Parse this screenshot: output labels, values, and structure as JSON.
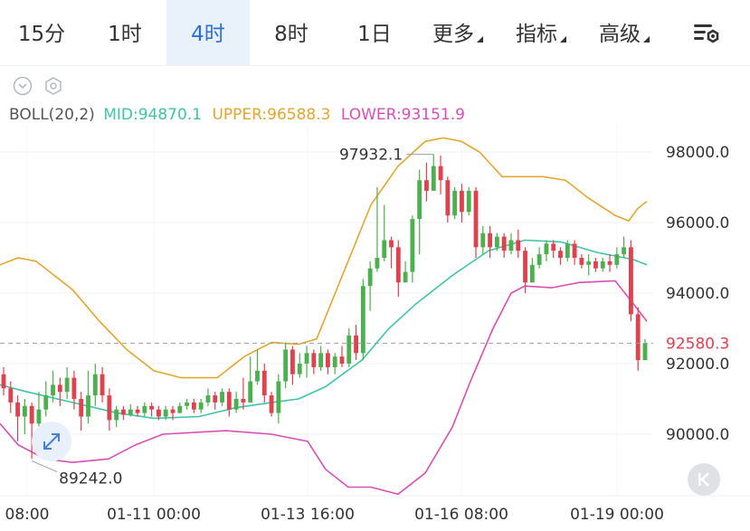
{
  "tabs": [
    {
      "label": "15分",
      "active": false,
      "dropdown": false
    },
    {
      "label": "1时",
      "active": false,
      "dropdown": false
    },
    {
      "label": "4时",
      "active": true,
      "dropdown": false
    },
    {
      "label": "8时",
      "active": false,
      "dropdown": false
    },
    {
      "label": "1日",
      "active": false,
      "dropdown": false
    },
    {
      "label": "更多",
      "active": false,
      "dropdown": true
    },
    {
      "label": "指标",
      "active": false,
      "dropdown": true
    },
    {
      "label": "高级",
      "active": false,
      "dropdown": true
    }
  ],
  "icons": {
    "settings": "chart-settings-icon",
    "collapse": "chevron-down-circle-icon",
    "indicator": "hexagon-settings-icon",
    "expand": "expand-arrows-icon",
    "back": "skip-back-icon"
  },
  "boll": {
    "name": "BOLL(20,2)",
    "mid": "MID:94870.1",
    "upper": "UPPER:96588.3",
    "lower": "LOWER:93151.9"
  },
  "colors": {
    "up": "#4caf50",
    "down": "#e0414f",
    "mid": "#3fc4a6",
    "upper": "#e2a72e",
    "lower": "#d94fb5",
    "active_tab": "#2c6fd8"
  },
  "chart_data": {
    "type": "candlestick",
    "yticks": [
      "98000.0",
      "96000.0",
      "94000.0",
      "92000.0",
      "90000.0"
    ],
    "ytick_values": [
      98000,
      96000,
      94000,
      92000,
      90000
    ],
    "xticks": [
      "08:00",
      "01-11 00:00",
      "01-13 16:00",
      "01-16 08:00",
      "01-19 00:00"
    ],
    "current_price": "92580.3",
    "current_value": 92580.3,
    "high_annotation": "97932.1",
    "high_value": 97932.1,
    "low_annotation": "89242.0",
    "low_value": 89242.0,
    "candles": [
      [
        91700,
        91300,
        91900,
        91100
      ],
      [
        91300,
        90900,
        91500,
        90600
      ],
      [
        90900,
        90500,
        91100,
        89800
      ],
      [
        90500,
        90800,
        91000,
        90000
      ],
      [
        90800,
        90300,
        90900,
        89300
      ],
      [
        90300,
        90700,
        91200,
        89800
      ],
      [
        90700,
        91100,
        91500,
        90500
      ],
      [
        91100,
        91400,
        91800,
        90900
      ],
      [
        91400,
        91200,
        91600,
        90800
      ],
      [
        91200,
        91600,
        91900,
        91000
      ],
      [
        91600,
        91000,
        91800,
        90700
      ],
      [
        91000,
        90500,
        91200,
        90100
      ],
      [
        90500,
        91100,
        91800,
        90300
      ],
      [
        91100,
        91700,
        92000,
        90800
      ],
      [
        91700,
        91100,
        91900,
        90900
      ],
      [
        91100,
        90400,
        91300,
        90100
      ],
      [
        90400,
        90700,
        90800,
        90200
      ],
      [
        90700,
        90550,
        90800,
        90400
      ],
      [
        90550,
        90700,
        90850,
        90500
      ],
      [
        90700,
        90600,
        90800,
        90500
      ],
      [
        90600,
        90800,
        90900,
        90500
      ],
      [
        90800,
        90700,
        90900,
        90500
      ],
      [
        90700,
        90500,
        90800,
        90400
      ],
      [
        90500,
        90700,
        90800,
        90400
      ],
      [
        90700,
        90600,
        90800,
        90400
      ],
      [
        90600,
        90800,
        90900,
        90600
      ],
      [
        90800,
        90900,
        91000,
        90700
      ],
      [
        90900,
        90700,
        91000,
        90600
      ],
      [
        90700,
        90900,
        91000,
        90600
      ],
      [
        90900,
        91100,
        91300,
        90800
      ],
      [
        91100,
        90900,
        91200,
        90700
      ],
      [
        90900,
        91200,
        91300,
        90800
      ],
      [
        91200,
        90700,
        91300,
        90500
      ],
      [
        90700,
        91000,
        91200,
        90600
      ],
      [
        91000,
        90900,
        91600,
        90700
      ],
      [
        90900,
        91500,
        92200,
        90900
      ],
      [
        91500,
        91800,
        92400,
        91400
      ],
      [
        91800,
        91100,
        92000,
        90900
      ],
      [
        91100,
        90600,
        91200,
        90500
      ],
      [
        90600,
        91500,
        91700,
        90300
      ],
      [
        91500,
        92400,
        92600,
        91300
      ],
      [
        92400,
        91700,
        92500,
        91400
      ],
      [
        91700,
        92000,
        92300,
        91600
      ],
      [
        92000,
        92300,
        92500,
        91600
      ],
      [
        92300,
        91900,
        92400,
        91700
      ],
      [
        91900,
        92300,
        92500,
        91800
      ],
      [
        92300,
        91900,
        92400,
        91700
      ],
      [
        91900,
        92200,
        92300,
        91700
      ],
      [
        92200,
        92000,
        92500,
        91900
      ],
      [
        92000,
        92800,
        93000,
        91900
      ],
      [
        92800,
        92300,
        93100,
        92100
      ],
      [
        92300,
        94200,
        94400,
        92100
      ],
      [
        94200,
        94700,
        94900,
        93500
      ],
      [
        94700,
        95000,
        97000,
        94600
      ],
      [
        95000,
        95500,
        96500,
        94900
      ],
      [
        95500,
        95300,
        95600,
        94700
      ],
      [
        95300,
        94300,
        95500,
        93900
      ],
      [
        94300,
        94600,
        94900,
        94400
      ],
      [
        94600,
        96100,
        96200,
        94300
      ],
      [
        96100,
        97200,
        97500,
        95100
      ],
      [
        97200,
        96900,
        97700,
        96600
      ],
      [
        96900,
        97600,
        97932,
        97500
      ],
      [
        97600,
        97200,
        97900,
        96800
      ],
      [
        97200,
        96200,
        97300,
        96000
      ],
      [
        96200,
        96900,
        97000,
        96100
      ],
      [
        96900,
        96300,
        97100,
        96000
      ],
      [
        96300,
        96900,
        97000,
        96200
      ],
      [
        96900,
        95300,
        97000,
        95000
      ],
      [
        95300,
        95700,
        95900,
        95100
      ],
      [
        95700,
        95300,
        95900,
        95000
      ],
      [
        95300,
        95600,
        95700,
        95200
      ],
      [
        95600,
        95200,
        95700,
        95000
      ],
      [
        95200,
        95500,
        95700,
        95100
      ],
      [
        95500,
        95200,
        95800,
        95000
      ],
      [
        95200,
        94300,
        95300,
        94000
      ],
      [
        94300,
        94800,
        95000,
        94300
      ],
      [
        94800,
        95100,
        95300,
        94700
      ],
      [
        95100,
        95400,
        95500,
        94900
      ],
      [
        95400,
        95200,
        95500,
        95000
      ],
      [
        95200,
        95000,
        95300,
        94800
      ],
      [
        95000,
        95400,
        95500,
        94900
      ],
      [
        95400,
        95000,
        95500,
        94800
      ],
      [
        95000,
        94800,
        95100,
        94700
      ],
      [
        94800,
        94900,
        95100,
        94500
      ],
      [
        94900,
        94700,
        95000,
        94600
      ],
      [
        94700,
        94900,
        95000,
        94600
      ],
      [
        94900,
        94800,
        95100,
        94600
      ],
      [
        94800,
        95100,
        95300,
        94700
      ],
      [
        95100,
        95300,
        95600,
        95000
      ],
      [
        95300,
        93400,
        95500,
        93200
      ],
      [
        93400,
        92100,
        93600,
        91800
      ],
      [
        92100,
        92580,
        92700,
        92200
      ]
    ],
    "boll_mid": [
      [
        0,
        91400
      ],
      [
        30,
        91200
      ],
      [
        80,
        90900
      ],
      [
        130,
        90600
      ],
      [
        170,
        90450
      ],
      [
        220,
        90500
      ],
      [
        260,
        90750
      ],
      [
        300,
        90900
      ],
      [
        330,
        91000
      ],
      [
        360,
        91350
      ],
      [
        400,
        92100
      ],
      [
        430,
        93000
      ],
      [
        460,
        93700
      ],
      [
        500,
        94500
      ],
      [
        540,
        95200
      ],
      [
        580,
        95500
      ],
      [
        620,
        95450
      ],
      [
        660,
        95150
      ],
      [
        700,
        94950
      ],
      [
        715,
        94800
      ]
    ],
    "boll_upper": [
      [
        0,
        94800
      ],
      [
        20,
        95000
      ],
      [
        40,
        94900
      ],
      [
        80,
        94100
      ],
      [
        110,
        93200
      ],
      [
        140,
        92400
      ],
      [
        170,
        91800
      ],
      [
        200,
        91600
      ],
      [
        240,
        91600
      ],
      [
        270,
        92200
      ],
      [
        300,
        92600
      ],
      [
        330,
        92550
      ],
      [
        350,
        92700
      ],
      [
        380,
        94600
      ],
      [
        410,
        96500
      ],
      [
        440,
        97600
      ],
      [
        470,
        98300
      ],
      [
        490,
        98400
      ],
      [
        510,
        98300
      ],
      [
        530,
        98000
      ],
      [
        555,
        97300
      ],
      [
        580,
        97300
      ],
      [
        600,
        97300
      ],
      [
        625,
        97200
      ],
      [
        650,
        96700
      ],
      [
        680,
        96200
      ],
      [
        695,
        96050
      ],
      [
        705,
        96400
      ],
      [
        715,
        96600
      ]
    ],
    "boll_lower": [
      [
        0,
        90300
      ],
      [
        20,
        89700
      ],
      [
        50,
        89300
      ],
      [
        80,
        89200
      ],
      [
        120,
        89300
      ],
      [
        150,
        89700
      ],
      [
        180,
        90000
      ],
      [
        250,
        90100
      ],
      [
        300,
        90000
      ],
      [
        340,
        89800
      ],
      [
        360,
        89000
      ],
      [
        385,
        88500
      ],
      [
        410,
        88500
      ],
      [
        440,
        88300
      ],
      [
        470,
        88900
      ],
      [
        500,
        90200
      ],
      [
        520,
        91500
      ],
      [
        545,
        93000
      ],
      [
        565,
        94000
      ],
      [
        580,
        94200
      ],
      [
        610,
        94150
      ],
      [
        640,
        94300
      ],
      [
        680,
        94350
      ],
      [
        700,
        93700
      ],
      [
        715,
        93200
      ]
    ]
  }
}
